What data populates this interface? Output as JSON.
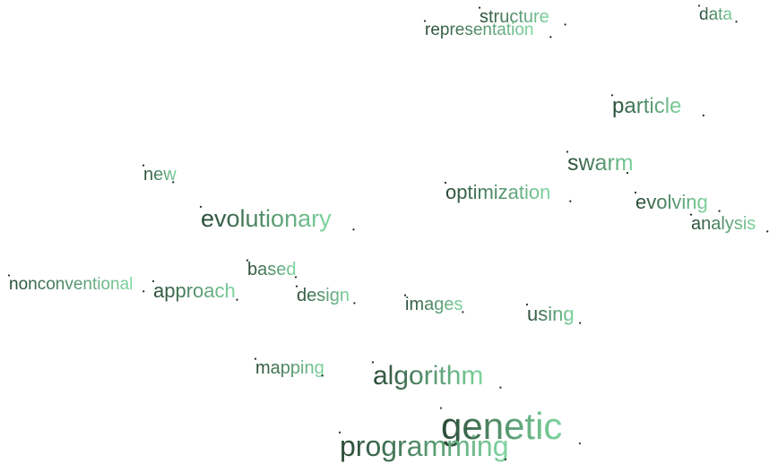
{
  "words": [
    {
      "text": "genetic",
      "weight": 1.0
    },
    {
      "text": "programming",
      "weight": 0.85
    },
    {
      "text": "algorithm",
      "weight": 0.78
    },
    {
      "text": "evolutionary",
      "weight": 0.7
    },
    {
      "text": "swarm",
      "weight": 0.62
    },
    {
      "text": "particle",
      "weight": 0.55
    },
    {
      "text": "optimization",
      "weight": 0.5
    },
    {
      "text": "evolving",
      "weight": 0.5
    },
    {
      "text": "approach",
      "weight": 0.5
    },
    {
      "text": "using",
      "weight": 0.5
    },
    {
      "text": "analysis",
      "weight": 0.45
    },
    {
      "text": "images",
      "weight": 0.45
    },
    {
      "text": "design",
      "weight": 0.45
    },
    {
      "text": "based",
      "weight": 0.42
    },
    {
      "text": "mapping",
      "weight": 0.42
    },
    {
      "text": "new",
      "weight": 0.42
    },
    {
      "text": "nonconventional",
      "weight": 0.4
    },
    {
      "text": "data",
      "weight": 0.42
    },
    {
      "text": "structure",
      "weight": 0.42
    },
    {
      "text": "representation",
      "weight": 0.4
    }
  ],
  "colors": {
    "dark": "#2a4a37",
    "mid": "#5a9a72",
    "light": "#7fd6a0",
    "dot": "#1f2a24"
  }
}
